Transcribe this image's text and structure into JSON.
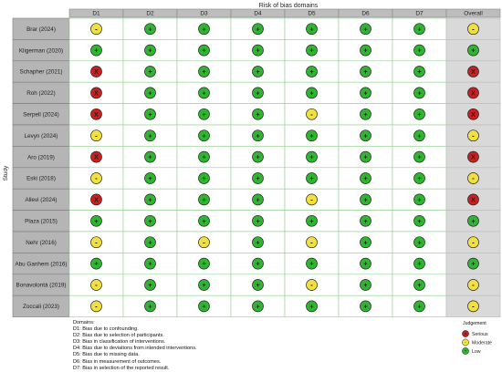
{
  "chart_data": {
    "type": "table",
    "title": "Risk of bias domains",
    "ylabel": "Study",
    "columns": [
      "D1",
      "D2",
      "D3",
      "D4",
      "D5",
      "D6",
      "D7",
      "Overall"
    ],
    "studies": [
      "Brar (2024)",
      "Kligerman (2020)",
      "Schapher (2021)",
      "Roh (2022)",
      "Serpell (2024)",
      "Levyn (2024)",
      "Aro (2019)",
      "Eski (2018)",
      "Allevi (2024)",
      "Plaza (2015)",
      "Nehr (2016)",
      "Abu Ganhem (2016)",
      "Bonavolontà (2019)",
      "Zoccali (2023)"
    ],
    "judgements": [
      [
        "-",
        "+",
        "+",
        "+",
        "+",
        "+",
        "+",
        "-"
      ],
      [
        "+",
        "+",
        "+",
        "+",
        "+",
        "+",
        "+",
        "+"
      ],
      [
        "X",
        "+",
        "+",
        "+",
        "+",
        "+",
        "+",
        "X"
      ],
      [
        "X",
        "+",
        "+",
        "+",
        "+",
        "+",
        "+",
        "X"
      ],
      [
        "X",
        "+",
        "+",
        "+",
        "-",
        "+",
        "+",
        "X"
      ],
      [
        "-",
        "+",
        "+",
        "+",
        "+",
        "+",
        "+",
        "-"
      ],
      [
        "X",
        "+",
        "+",
        "+",
        "+",
        "+",
        "+",
        "X"
      ],
      [
        "-",
        "+",
        "+",
        "+",
        "+",
        "+",
        "+",
        "-"
      ],
      [
        "X",
        "+",
        "+",
        "+",
        "-",
        "+",
        "+",
        "X"
      ],
      [
        "+",
        "+",
        "+",
        "+",
        "+",
        "+",
        "+",
        "+"
      ],
      [
        "-",
        "+",
        "-",
        "+",
        "-",
        "+",
        "+",
        "-"
      ],
      [
        "+",
        "+",
        "+",
        "+",
        "+",
        "+",
        "+",
        "+"
      ],
      [
        "-",
        "+",
        "+",
        "+",
        "-",
        "+",
        "+",
        "-"
      ],
      [
        "-",
        "+",
        "+",
        "+",
        "+",
        "+",
        "+",
        "-"
      ]
    ],
    "legend_title": "Judgement",
    "legend": [
      {
        "symbol": "X",
        "label": "Serious",
        "color": "#cc1f1f"
      },
      {
        "symbol": "-",
        "label": "Moderate",
        "color": "#f0e040"
      },
      {
        "symbol": "+",
        "label": "Low",
        "color": "#2fb52f"
      }
    ]
  },
  "domains_title": "Domains:",
  "domains": [
    "D1: Bias due to confounding.",
    "D2: Bias due to selection of participants.",
    "D3: Bias in classification of interventions.",
    "D4: Bias due to deviations from intended interventions.",
    "D5: Bias due to missing data.",
    "D6: Bias in measurement of outcomes.",
    "D7: Bias in selection of the reported result."
  ],
  "colors": {
    "serious": "#cc1f1f",
    "moderate": "#f0e040",
    "low": "#2fb52f",
    "study_fill": "#b5b5b5",
    "header_fill": "#bdbdbd",
    "overall_fill": "#d9d9d9",
    "cell_border": "#8fd08f"
  }
}
